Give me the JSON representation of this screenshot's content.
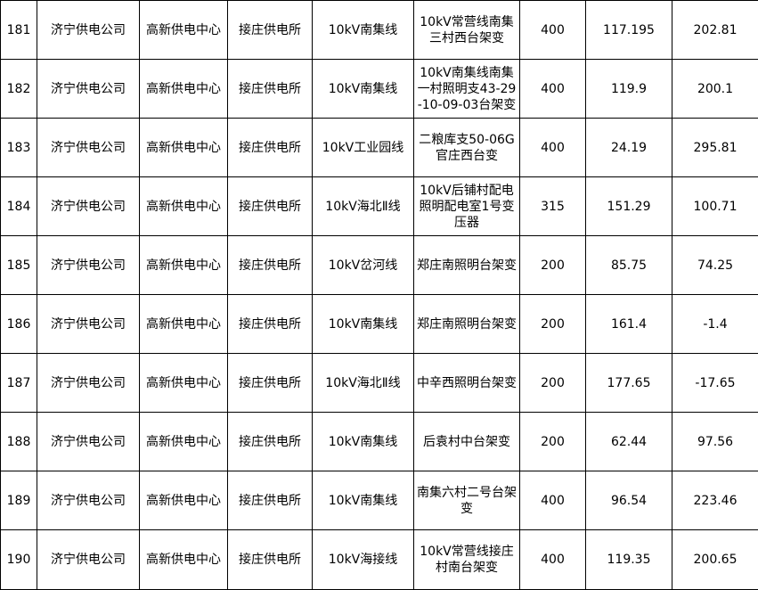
{
  "table": {
    "rows": [
      [
        "181",
        "济宁供电公司",
        "高新供电中心",
        "接庄供电所",
        "10kV南集线",
        "10kV常营线南集三村西台架变",
        "400",
        "117.195",
        "202.81"
      ],
      [
        "182",
        "济宁供电公司",
        "高新供电中心",
        "接庄供电所",
        "10kV南集线",
        "10kV南集线南集一村照明支43-29-10-09-03台架变",
        "400",
        "119.9",
        "200.1"
      ],
      [
        "183",
        "济宁供电公司",
        "高新供电中心",
        "接庄供电所",
        "10kV工业园线",
        "二粮库支50-06G官庄西台变",
        "400",
        "24.19",
        "295.81"
      ],
      [
        "184",
        "济宁供电公司",
        "高新供电中心",
        "接庄供电所",
        "10kV海北Ⅱ线",
        "10kV后铺村配电照明配电室1号变压器",
        "315",
        "151.29",
        "100.71"
      ],
      [
        "185",
        "济宁供电公司",
        "高新供电中心",
        "接庄供电所",
        "10kV岔河线",
        "郑庄南照明台架变",
        "200",
        "85.75",
        "74.25"
      ],
      [
        "186",
        "济宁供电公司",
        "高新供电中心",
        "接庄供电所",
        "10kV南集线",
        "郑庄南照明台架变",
        "200",
        "161.4",
        "-1.4"
      ],
      [
        "187",
        "济宁供电公司",
        "高新供电中心",
        "接庄供电所",
        "10kV海北Ⅱ线",
        "中辛西照明台架变",
        "200",
        "177.65",
        "-17.65"
      ],
      [
        "188",
        "济宁供电公司",
        "高新供电中心",
        "接庄供电所",
        "10kV南集线",
        "后袁村中台架变",
        "200",
        "62.44",
        "97.56"
      ],
      [
        "189",
        "济宁供电公司",
        "高新供电中心",
        "接庄供电所",
        "10kV南集线",
        "南集六村二号台架变",
        "400",
        "96.54",
        "223.46"
      ],
      [
        "190",
        "济宁供电公司",
        "高新供电中心",
        "接庄供电所",
        "10kV海接线",
        "10kV常营线接庄村南台架变",
        "400",
        "119.35",
        "200.65"
      ]
    ]
  }
}
